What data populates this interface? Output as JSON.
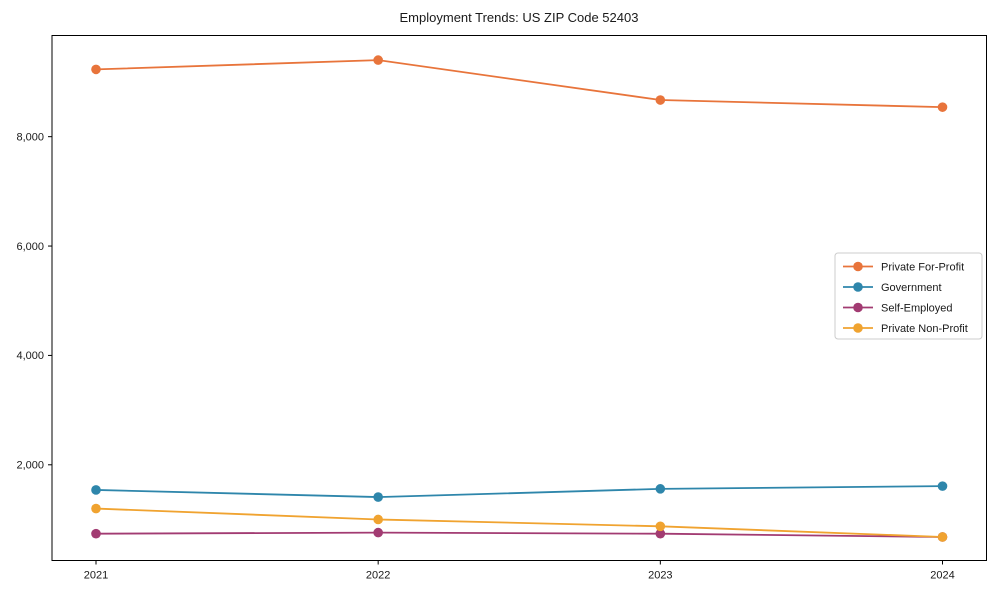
{
  "title": "Employment Trends: US ZIP Code 52403",
  "chart_data": {
    "type": "line",
    "title": "Employment Trends: US ZIP Code 52403",
    "xlabel": "",
    "ylabel": "",
    "x_categories": [
      "2021",
      "2022",
      "2023",
      "2024"
    ],
    "series": [
      {
        "name": "Private For-Profit",
        "color": "#E8743B",
        "values": [
          9230,
          9400,
          8670,
          8540
        ]
      },
      {
        "name": "Government",
        "color": "#2E86AB",
        "values": [
          1540,
          1410,
          1560,
          1610
        ]
      },
      {
        "name": "Self-Employed",
        "color": "#A23B72",
        "values": [
          740,
          760,
          740,
          680
        ]
      },
      {
        "name": "Private Non-Profit",
        "color": "#F0A330",
        "values": [
          1200,
          1000,
          875,
          680
        ]
      }
    ],
    "yticks": [
      2000,
      4000,
      6000,
      8000
    ],
    "ytick_labels": [
      "2,000",
      "4,000",
      "6,000",
      "8,000"
    ],
    "ylim": [
      250,
      9850
    ],
    "grid": false,
    "legend_position": "right-middle",
    "marker": "circle",
    "axis_color": "#000000",
    "legend_border_color": "#cccccc",
    "background": "#ffffff"
  }
}
